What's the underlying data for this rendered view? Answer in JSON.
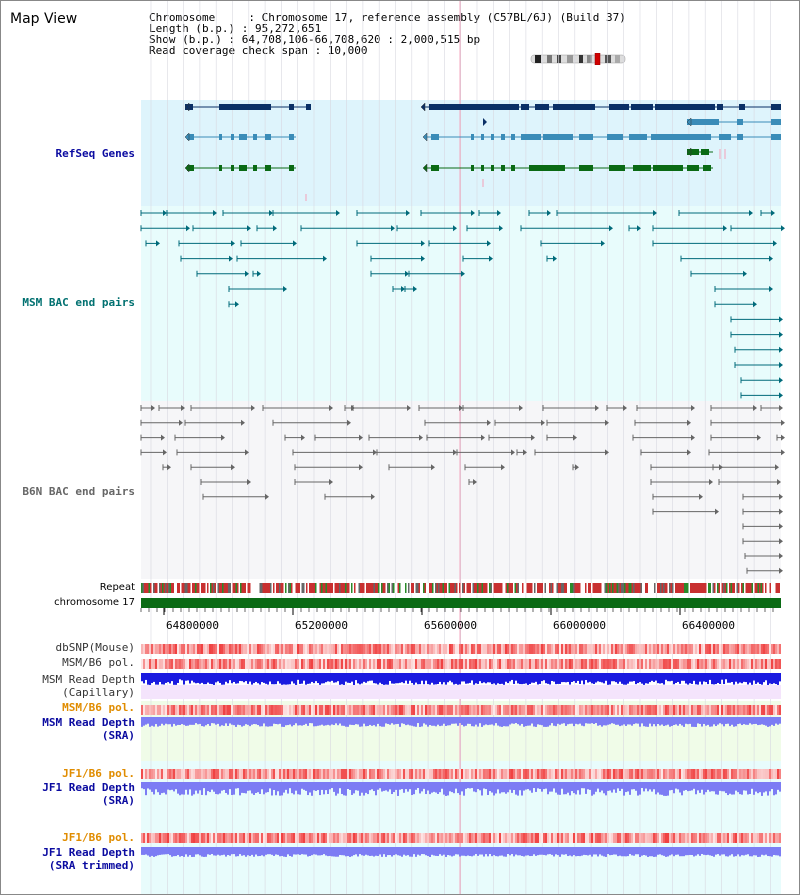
{
  "title": "Map View",
  "info": {
    "chromosome": "Chromosome     : Chromosome 17, reference assembly (C57BL/6J) (Build 37)",
    "length": "Length (b.p.) : 95,272,651",
    "show": "Show (b.p.) : 64,708,106-66,708,620 : 2,000,515 bp",
    "coverage": "Read coverage check span : 10,000"
  },
  "tracks": {
    "refseq": "RefSeq Genes",
    "msm_bac": "MSM BAC end pairs",
    "b6n_bac": "B6N BAC end pairs",
    "repeat": "Repeat",
    "chrom": "chromosome 17",
    "dbsnp": "dbSNP(Mouse)",
    "msm_b6_pol": "MSM/B6 pol.",
    "msm_depth_cap": "MSM Read Depth\n(Capillary)",
    "msm_b6_pol2": "MSM/B6 pol.",
    "msm_depth_sra": "MSM Read Depth\n(SRA)",
    "jf1_b6_pol": "JF1/B6 pol.",
    "jf1_depth_sra": "JF1 Read Depth\n(SRA)",
    "jf1_b6_pol2": "JF1/B6 pol.",
    "jf1_depth_trim": "JF1 Read Depth\n(SRA trimmed)"
  },
  "axis": {
    "ticks": [
      "64800000",
      "65200000",
      "65600000",
      "66000000",
      "66400000"
    ]
  },
  "colors": {
    "refseq_bg": "#def4fc",
    "msm_bg": "#e8fcfc",
    "b6n_bg": "#f4f4f8",
    "gene_dark": "#0a3066",
    "gene_mid": "#3a8cb8",
    "gene_green": "#0a6a14",
    "msm_line": "#006a7a",
    "b6n_line": "#666666",
    "chrom_green": "#0a6a14",
    "snp_red": "#e83c3c",
    "depth_blue": "#1a1ae0",
    "depth_light": "#7c7cf4",
    "label_blue": "#0a0aa0",
    "label_teal": "#007070",
    "label_orange": "#e08c00"
  }
}
